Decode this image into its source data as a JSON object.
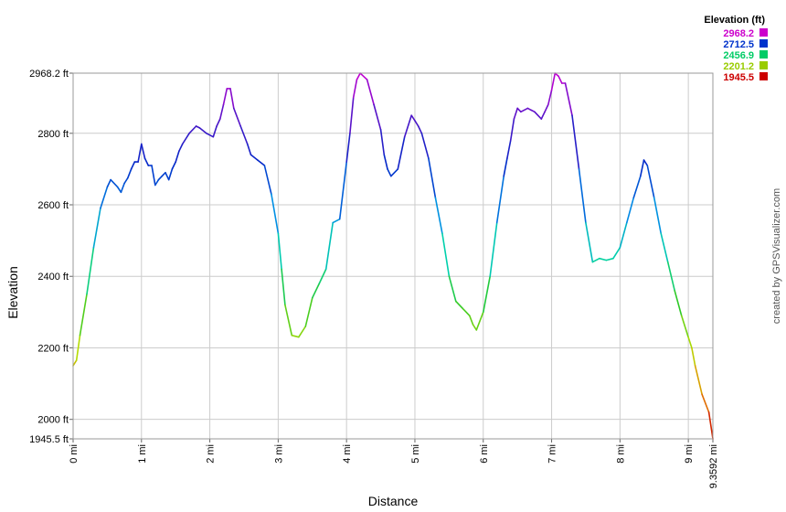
{
  "chart_data": {
    "type": "line",
    "xlabel": "Distance",
    "ylabel": "Elevation",
    "xlim": [
      0,
      9.3592
    ],
    "ylim": [
      1945.5,
      2968.2
    ],
    "x_ticks": [
      {
        "value": 0,
        "label": "0 mi"
      },
      {
        "value": 1,
        "label": "1 mi"
      },
      {
        "value": 2,
        "label": "2 mi"
      },
      {
        "value": 3,
        "label": "3 mi"
      },
      {
        "value": 4,
        "label": "4 mi"
      },
      {
        "value": 5,
        "label": "5 mi"
      },
      {
        "value": 6,
        "label": "6 mi"
      },
      {
        "value": 7,
        "label": "7 mi"
      },
      {
        "value": 8,
        "label": "8 mi"
      },
      {
        "value": 9,
        "label": "9 mi"
      },
      {
        "value": 9.3592,
        "label": "9.3592 mi"
      }
    ],
    "y_ticks": [
      {
        "value": 1945.5,
        "label": "1945.5 ft"
      },
      {
        "value": 2000,
        "label": "2000 ft"
      },
      {
        "value": 2200,
        "label": "2200 ft"
      },
      {
        "value": 2400,
        "label": "2400 ft"
      },
      {
        "value": 2600,
        "label": "2600 ft"
      },
      {
        "value": 2800,
        "label": "2800 ft"
      },
      {
        "value": 2968.2,
        "label": "2968.2 ft"
      }
    ],
    "grid": true,
    "legend": {
      "title": "Elevation (ft)",
      "placement": "top-right",
      "entries": [
        {
          "label": "2968.2",
          "color": "#cc00cc"
        },
        {
          "label": "2712.5",
          "color": "#0033cc"
        },
        {
          "label": "2456.9",
          "color": "#00cc66"
        },
        {
          "label": "2201.2",
          "color": "#99cc00"
        },
        {
          "label": "1945.5",
          "color": "#cc0000"
        }
      ]
    },
    "series": [
      {
        "x": [
          0,
          0.05,
          0.1,
          0.2,
          0.3,
          0.4,
          0.5,
          0.55,
          0.65,
          0.7,
          0.75,
          0.8,
          0.85,
          0.9,
          0.95,
          1.0,
          1.05,
          1.1,
          1.15,
          1.2,
          1.25,
          1.3,
          1.35,
          1.4,
          1.45,
          1.5,
          1.55,
          1.6,
          1.7,
          1.8,
          1.85,
          1.95,
          2.05,
          2.1,
          2.15,
          2.2,
          2.25,
          2.3,
          2.35,
          2.45,
          2.55,
          2.6,
          2.7,
          2.8,
          2.9,
          3.0,
          3.05,
          3.1,
          3.2,
          3.3,
          3.4,
          3.5,
          3.6,
          3.7,
          3.8,
          3.9,
          4.0,
          4.05,
          4.1,
          4.15,
          4.2,
          4.3,
          4.4,
          4.5,
          4.55,
          4.6,
          4.65,
          4.75,
          4.85,
          4.95,
          5.0,
          5.05,
          5.1,
          5.2,
          5.3,
          5.4,
          5.5,
          5.6,
          5.7,
          5.8,
          5.85,
          5.9,
          6.0,
          6.1,
          6.2,
          6.3,
          6.35,
          6.4,
          6.45,
          6.5,
          6.55,
          6.65,
          6.7,
          6.75,
          6.85,
          6.9,
          6.95,
          7.0,
          7.05,
          7.1,
          7.15,
          7.2,
          7.3,
          7.4,
          7.5,
          7.6,
          7.7,
          7.8,
          7.9,
          8.0,
          8.1,
          8.2,
          8.3,
          8.35,
          8.4,
          8.5,
          8.6,
          8.7,
          8.8,
          8.9,
          9.0,
          9.05,
          9.1,
          9.2,
          9.3,
          9.3592
        ],
        "y": [
          2150,
          2165,
          2235,
          2350,
          2480,
          2590,
          2650,
          2670,
          2650,
          2635,
          2660,
          2675,
          2700,
          2720,
          2720,
          2770,
          2730,
          2710,
          2710,
          2655,
          2670,
          2680,
          2690,
          2670,
          2700,
          2720,
          2750,
          2770,
          2800,
          2820,
          2815,
          2800,
          2790,
          2820,
          2840,
          2880,
          2925,
          2925,
          2870,
          2820,
          2770,
          2740,
          2725,
          2710,
          2630,
          2520,
          2420,
          2320,
          2235,
          2230,
          2260,
          2340,
          2380,
          2420,
          2550,
          2560,
          2720,
          2800,
          2900,
          2950,
          2968,
          2950,
          2880,
          2810,
          2740,
          2700,
          2680,
          2700,
          2790,
          2850,
          2835,
          2820,
          2800,
          2730,
          2620,
          2520,
          2400,
          2330,
          2310,
          2290,
          2265,
          2250,
          2300,
          2400,
          2550,
          2680,
          2730,
          2780,
          2840,
          2870,
          2860,
          2870,
          2865,
          2860,
          2840,
          2860,
          2880,
          2920,
          2968,
          2960,
          2940,
          2940,
          2850,
          2700,
          2550,
          2440,
          2450,
          2445,
          2450,
          2480,
          2550,
          2620,
          2680,
          2725,
          2710,
          2620,
          2520,
          2440,
          2360,
          2290,
          2230,
          2200,
          2150,
          2070,
          2020,
          1945.5
        ]
      }
    ]
  },
  "credit_text": "created by GPSVisualizer.com"
}
